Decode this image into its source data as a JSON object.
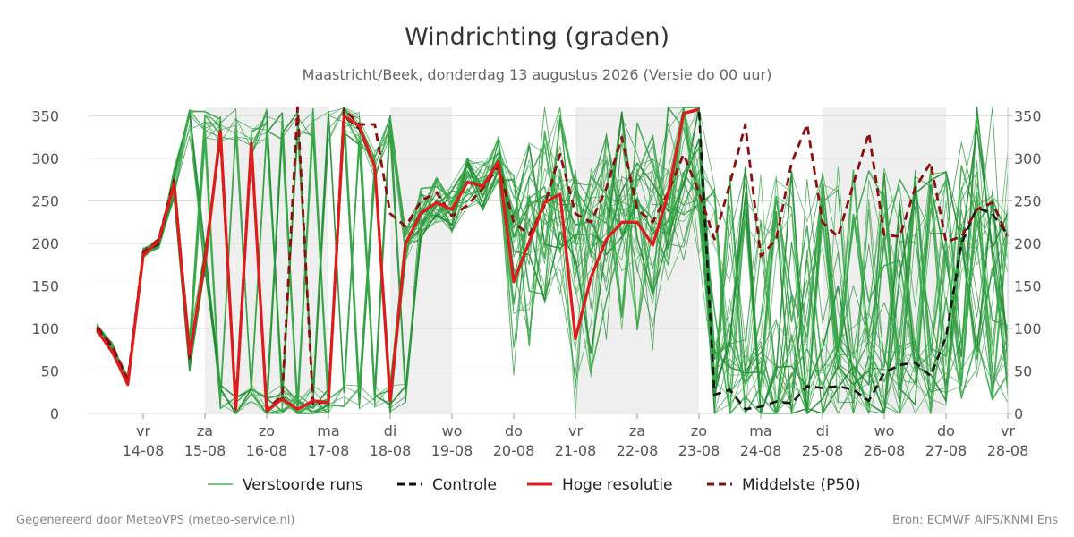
{
  "chart_data": {
    "type": "line",
    "title": "Windrichting (graden)",
    "subtitle": "Maastricht/Beek, donderdag 13 augustus 2026 (Versie do 00 uur)",
    "ylim": [
      0,
      360
    ],
    "y_ticks": [
      0,
      50,
      100,
      150,
      200,
      250,
      300,
      350
    ],
    "x_ticks": [
      {
        "day": "vr",
        "date": "14-08"
      },
      {
        "day": "za",
        "date": "15-08"
      },
      {
        "day": "zo",
        "date": "16-08"
      },
      {
        "day": "ma",
        "date": "17-08"
      },
      {
        "day": "di",
        "date": "18-08"
      },
      {
        "day": "wo",
        "date": "19-08"
      },
      {
        "day": "do",
        "date": "20-08"
      },
      {
        "day": "vr",
        "date": "21-08"
      },
      {
        "day": "za",
        "date": "22-08"
      },
      {
        "day": "zo",
        "date": "23-08"
      },
      {
        "day": "ma",
        "date": "24-08"
      },
      {
        "day": "di",
        "date": "25-08"
      },
      {
        "day": "wo",
        "date": "26-08"
      },
      {
        "day": "do",
        "date": "27-08"
      },
      {
        "day": "vr",
        "date": "28-08"
      }
    ],
    "weekend_bands": [
      [
        1,
        3
      ],
      [
        4,
        5
      ],
      [
        7,
        9
      ],
      [
        11,
        13
      ]
    ],
    "legend": [
      {
        "label": "Verstoorde runs",
        "color": "#2e9e3e",
        "style": "thin"
      },
      {
        "label": "Controle",
        "color": "#111111",
        "style": "dash"
      },
      {
        "label": "Hoge resolutie",
        "color": "#e01b1b",
        "style": "solid"
      },
      {
        "label": "Middelste (P50)",
        "color": "#8b0f0f",
        "style": "dash"
      }
    ],
    "series": [
      {
        "name": "Controle",
        "x": [
          -0.75,
          -0.5,
          -0.25,
          0,
          0.25,
          0.5,
          0.75,
          1,
          1.25,
          1.5,
          1.75,
          2,
          2.25,
          2.5,
          2.75,
          3,
          3.25,
          3.5,
          3.75,
          4,
          4.25,
          4.5,
          4.75,
          5,
          5.25,
          5.5,
          5.75,
          6,
          6.25,
          6.5,
          6.75,
          7,
          7.25,
          7.5,
          7.75,
          8,
          8.25,
          8.5,
          8.75,
          9,
          9.25,
          9.5,
          9.75,
          10,
          10.25,
          10.5,
          10.75,
          11,
          11.25,
          11.5,
          11.75,
          12,
          12.25,
          12.5,
          12.75,
          13,
          13.25,
          13.5,
          13.75,
          14
        ],
        "values": [
          100,
          78,
          38,
          188,
          200,
          270,
          70,
          180,
          330,
          5,
          318,
          3,
          18,
          5,
          15,
          12,
          350,
          335,
          290,
          15,
          200,
          235,
          248,
          240,
          272,
          267,
          296,
          155,
          200,
          248,
          258,
          88,
          160,
          205,
          225,
          225,
          198,
          258,
          353,
          357,
          22,
          28,
          5,
          8,
          14,
          12,
          32,
          30,
          32,
          28,
          15,
          48,
          57,
          60,
          44,
          90,
          200,
          242,
          235,
          210
        ]
      },
      {
        "name": "Hoge resolutie",
        "x": [
          -0.75,
          -0.5,
          -0.25,
          0,
          0.25,
          0.5,
          0.75,
          1,
          1.25,
          1.5,
          1.75,
          2,
          2.25,
          2.5,
          2.75,
          3,
          3.25,
          3.5,
          3.75,
          4,
          4.25,
          4.5,
          4.75,
          5,
          5.25,
          5.5,
          5.75,
          6,
          6.25,
          6.5,
          6.75,
          7,
          7.25,
          7.5,
          7.75,
          8,
          8.25,
          8.5,
          8.75,
          9
        ],
        "values": [
          98,
          72,
          34,
          186,
          203,
          270,
          70,
          178,
          332,
          5,
          318,
          3,
          17,
          5,
          15,
          13,
          350,
          338,
          290,
          15,
          200,
          236,
          248,
          240,
          272,
          267,
          296,
          155,
          202,
          248,
          258,
          88,
          160,
          205,
          225,
          225,
          198,
          258,
          353,
          358
        ]
      },
      {
        "name": "Middelste (P50)",
        "x": [
          -0.75,
          -0.5,
          -0.25,
          0,
          0.25,
          0.5,
          0.75,
          1,
          1.25,
          1.5,
          1.75,
          2,
          2.25,
          2.5,
          2.75,
          3,
          3.25,
          3.5,
          3.75,
          4,
          4.25,
          4.5,
          4.75,
          5,
          5.25,
          5.5,
          5.75,
          6,
          6.25,
          6.5,
          6.75,
          7,
          7.25,
          7.5,
          7.75,
          8,
          8.25,
          8.5,
          8.75,
          9,
          9.25,
          9.5,
          9.75,
          10,
          10.25,
          10.5,
          10.75,
          11,
          11.25,
          11.5,
          11.75,
          12,
          12.25,
          12.5,
          12.75,
          13,
          13.25,
          13.5,
          13.75,
          14
        ],
        "values": [
          102,
          80,
          40,
          190,
          205,
          275,
          65,
          185,
          325,
          8,
          315,
          6,
          20,
          360,
          10,
          15,
          358,
          340,
          340,
          235,
          220,
          250,
          260,
          232,
          245,
          265,
          290,
          225,
          210,
          245,
          305,
          235,
          225,
          265,
          325,
          240,
          225,
          260,
          305,
          260,
          205,
          270,
          340,
          185,
          205,
          295,
          340,
          225,
          208,
          270,
          330,
          210,
          208,
          265,
          295,
          202,
          208,
          240,
          248,
          208
        ]
      }
    ]
  },
  "footer": {
    "left": "Gegenereerd door MeteoVPS (meteo-service.nl)",
    "right": "Bron: ECMWF AIFS/KNMI Ens"
  }
}
